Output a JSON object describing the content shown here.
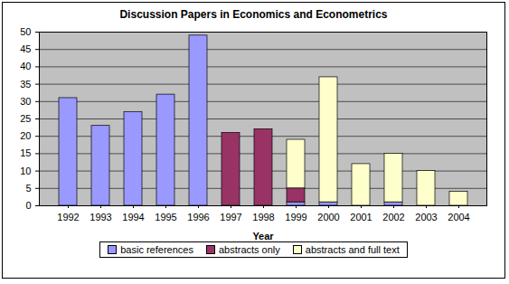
{
  "chart_data": {
    "type": "bar",
    "title": "Discussion Papers in Economics and Econometrics",
    "x_label": "Year",
    "categories": [
      "1992",
      "1993",
      "1994",
      "1995",
      "1996",
      "1997",
      "1998",
      "1999",
      "2000",
      "2001",
      "2002",
      "2003",
      "2004"
    ],
    "series": [
      {
        "name": "basic references",
        "color": "#9999ff",
        "values": [
          31,
          23,
          27,
          32,
          49,
          0,
          0,
          1,
          1,
          0,
          1,
          0,
          0
        ]
      },
      {
        "name": "abstracts only",
        "color": "#993366",
        "values": [
          0,
          0,
          0,
          0,
          0,
          21,
          22,
          4,
          0,
          0,
          0,
          0,
          0
        ]
      },
      {
        "name": "abstracts and full text",
        "color": "#ffffcc",
        "values": [
          0,
          0,
          0,
          0,
          0,
          0,
          0,
          14,
          36,
          12,
          14,
          10,
          4
        ]
      }
    ],
    "stacked": true,
    "ylim": [
      0,
      50
    ],
    "yticks": [
      0,
      5,
      10,
      15,
      20,
      25,
      30,
      35,
      40,
      45,
      50
    ],
    "grid": true,
    "legend": "bottom"
  }
}
